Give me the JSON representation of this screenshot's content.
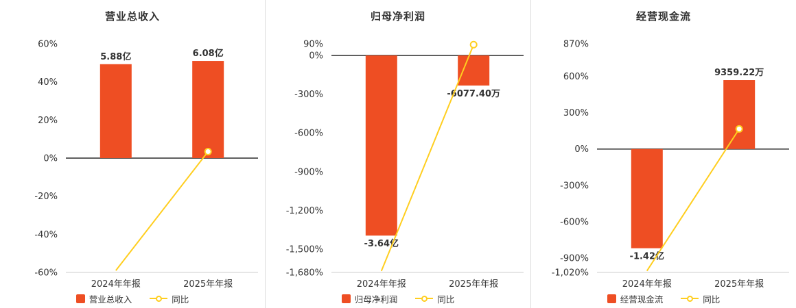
{
  "colors": {
    "bar": "#ee4e23",
    "line": "#ffce1f",
    "zero_line": "#5f5f5f",
    "bottom_axis": "#cccccc",
    "axis_text": "#333333",
    "divider": "#dddddd"
  },
  "chart_data": [
    {
      "type": "bar",
      "title": "营业总收入",
      "categories": [
        "2024年年报",
        "2025年年报"
      ],
      "series": [
        {
          "name": "营业总收入",
          "type": "bar",
          "values": [
            5.88,
            6.08
          ],
          "unit": "亿",
          "values_label": [
            "5.88亿",
            "6.08亿"
          ],
          "plotted_pct": [
            49.3,
            51.0
          ]
        },
        {
          "name": "同比",
          "type": "line",
          "values_pct": [
            -59.0,
            3.4
          ]
        }
      ],
      "y_ticks": [
        60,
        40,
        20,
        0,
        -20,
        -40,
        -60
      ],
      "ylim": [
        -60,
        60
      ],
      "y_tick_suffix": "%",
      "grid": false,
      "legend_position": "bottom"
    },
    {
      "type": "bar",
      "title": "归母净利润",
      "categories": [
        "2024年年报",
        "2025年年报"
      ],
      "series": [
        {
          "name": "归母净利润",
          "type": "bar",
          "values": [
            -3.64,
            -0.60774
          ],
          "unit": "亿",
          "values_label": [
            "-3.64亿",
            "-6077.40万"
          ],
          "plotted_pct": [
            -1395,
            -233
          ]
        },
        {
          "name": "同比",
          "type": "line",
          "values_pct": [
            -1669,
            83.3
          ]
        }
      ],
      "y_ticks": [
        90,
        0,
        -300,
        -600,
        -900,
        -1200,
        -1500,
        -1680
      ],
      "ylim": [
        -1680,
        90
      ],
      "y_tick_suffix": "%",
      "grid": false,
      "legend_position": "bottom"
    },
    {
      "type": "bar",
      "title": "经营现金流",
      "categories": [
        "2024年年报",
        "2025年年报"
      ],
      "series": [
        {
          "name": "经营现金流",
          "type": "bar",
          "values": [
            -1.42,
            0.935922
          ],
          "unit": "亿",
          "values_label": [
            "-1.42亿",
            "9359.22万"
          ],
          "plotted_pct": [
            -820,
            570
          ]
        },
        {
          "name": "同比",
          "type": "line",
          "values_pct": [
            -1007,
            166
          ]
        }
      ],
      "y_ticks": [
        870,
        600,
        300,
        0,
        -300,
        -600,
        -900,
        -1020
      ],
      "ylim": [
        -1020,
        870
      ],
      "y_tick_suffix": "%",
      "grid": false,
      "legend_position": "bottom"
    }
  ]
}
